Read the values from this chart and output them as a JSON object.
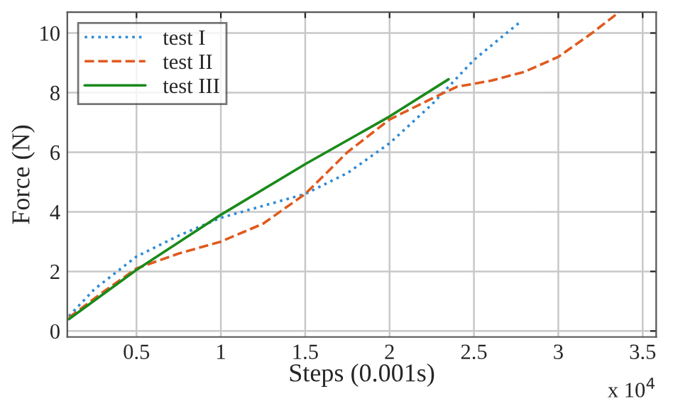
{
  "chart_data": {
    "type": "line",
    "xlabel": "Steps (0.001s)",
    "ylabel": "Force (N)",
    "annotations": [
      "x 10$^{4}$"
    ],
    "xlim": [
      0.09,
      3.58
    ],
    "xticks": [
      0.5,
      1,
      1.5,
      2,
      2.5,
      3,
      3.5
    ],
    "ylim": [
      -0.2,
      10.7
    ],
    "yticks": [
      0,
      2,
      4,
      6,
      8,
      10
    ],
    "grid": true,
    "legend": "top left",
    "series": [
      {
        "name": "test I",
        "color": "#2e8bd6",
        "line_style": "dotted",
        "x": [
          0.1,
          0.25,
          0.5,
          0.75,
          1.0,
          1.25,
          1.5,
          1.75,
          2.0,
          2.25,
          2.4,
          2.5,
          2.65,
          2.78
        ],
        "values": [
          0.5,
          1.4,
          2.5,
          3.2,
          3.8,
          4.2,
          4.6,
          5.3,
          6.3,
          7.6,
          8.5,
          9.1,
          9.8,
          10.4
        ]
      },
      {
        "name": "test II",
        "color": "#e05a1e",
        "line_style": "dashed",
        "x": [
          0.1,
          0.3,
          0.5,
          0.75,
          1.0,
          1.25,
          1.5,
          1.75,
          2.0,
          2.25,
          2.4,
          2.6,
          2.8,
          3.0,
          3.2,
          3.36
        ],
        "values": [
          0.45,
          1.3,
          2.1,
          2.6,
          3.0,
          3.6,
          4.6,
          6.0,
          7.1,
          7.8,
          8.2,
          8.4,
          8.7,
          9.2,
          10.0,
          10.7
        ]
      },
      {
        "name": "test III",
        "color": "#1a8a1a",
        "line_style": "solid",
        "x": [
          0.1,
          0.5,
          1.0,
          1.5,
          2.0,
          2.35
        ],
        "values": [
          0.4,
          2.05,
          3.9,
          5.6,
          7.2,
          8.45
        ]
      }
    ]
  }
}
